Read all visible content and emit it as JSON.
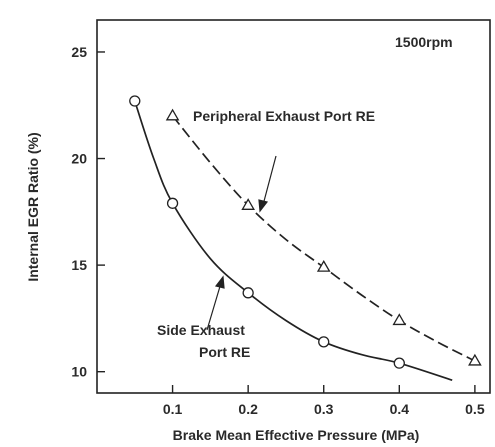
{
  "chart_data": {
    "type": "line",
    "xlabel": "Brake Mean Effective Pressure (MPa)",
    "ylabel": "Internal EGR Ratio (%)",
    "xlim": [
      0.0,
      0.52
    ],
    "ylim": [
      9.0,
      26.5
    ],
    "xticks": [
      "0.1",
      "0.2",
      "0.3",
      "0.4",
      "0.5"
    ],
    "yticks": [
      "10",
      "15",
      "20",
      "25"
    ],
    "grid": false,
    "annotations": {
      "condition": "1500rpm",
      "peripheral_label": "Peripheral Exhaust Port RE",
      "side_label_line1": "Side Exhaust",
      "side_label_line2": "Port RE"
    },
    "series": [
      {
        "name": "Peripheral Exhaust Port RE",
        "marker": "triangle",
        "line_style": "dashed",
        "x": [
          0.1,
          0.2,
          0.3,
          0.4,
          0.5
        ],
        "y": [
          22.0,
          17.8,
          14.9,
          12.4,
          10.5
        ],
        "curve_x": [
          0.1,
          0.15,
          0.2,
          0.25,
          0.3,
          0.35,
          0.4,
          0.45,
          0.5
        ],
        "curve_y": [
          22.0,
          19.8,
          17.8,
          16.2,
          14.9,
          13.6,
          12.4,
          11.4,
          10.5
        ]
      },
      {
        "name": "Side Exhaust Port RE",
        "marker": "circle",
        "line_style": "solid",
        "x": [
          0.05,
          0.1,
          0.2,
          0.3,
          0.4
        ],
        "y": [
          22.7,
          17.9,
          13.7,
          11.4,
          10.4
        ],
        "curve_x": [
          0.05,
          0.075,
          0.1,
          0.15,
          0.2,
          0.25,
          0.3,
          0.35,
          0.4,
          0.47
        ],
        "curve_y": [
          22.7,
          20.0,
          17.9,
          15.3,
          13.7,
          12.4,
          11.4,
          10.8,
          10.4,
          9.6
        ]
      }
    ]
  },
  "colors": {
    "line": "#222222",
    "text": "#2a2a2a",
    "background": "#ffffff"
  }
}
